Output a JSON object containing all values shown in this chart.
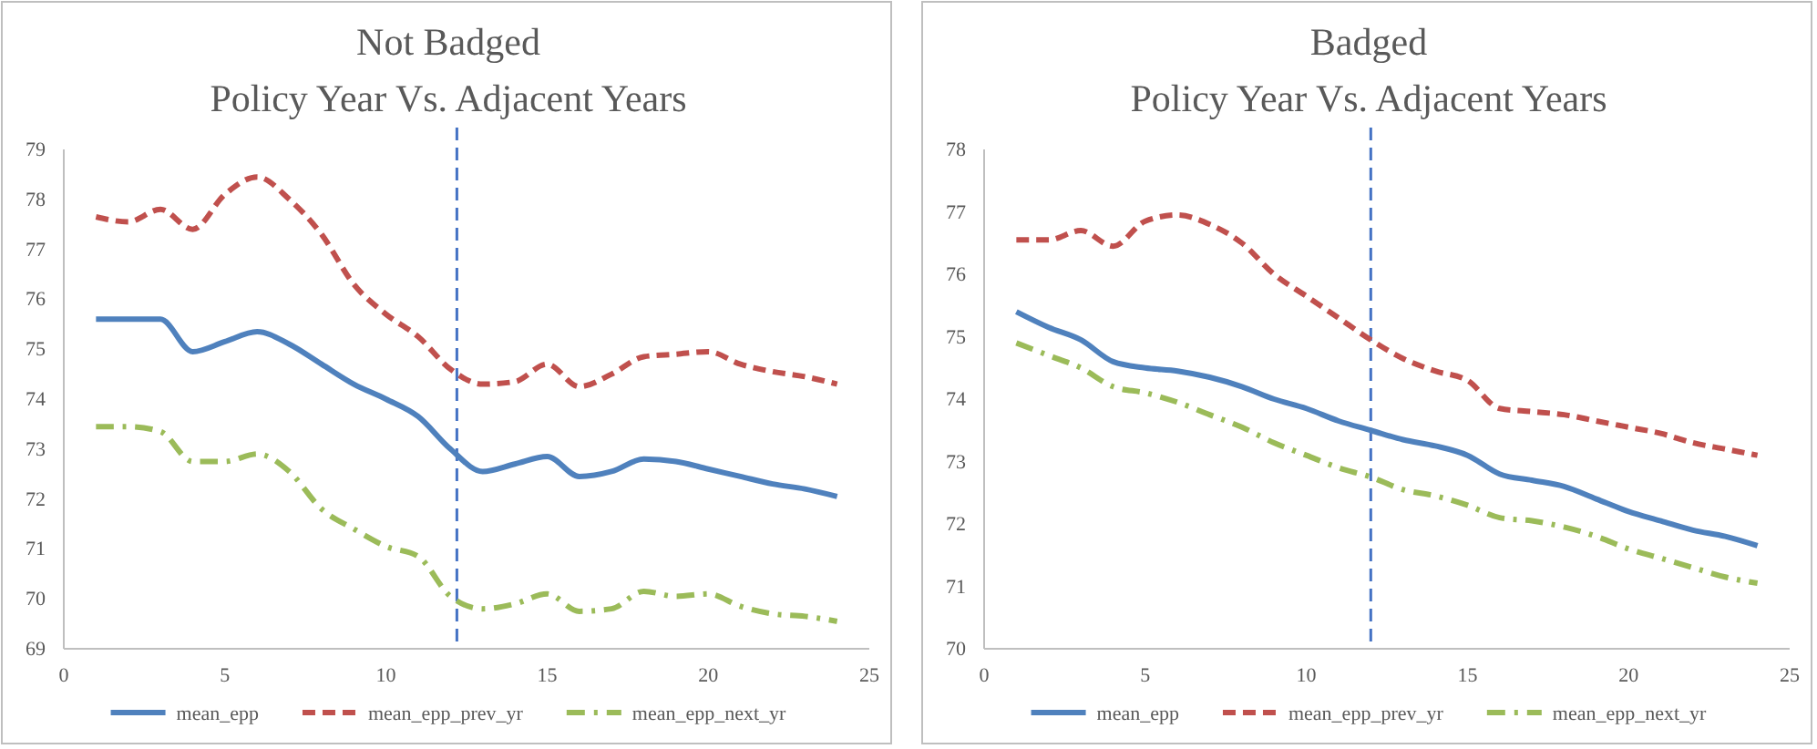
{
  "chart_data": [
    {
      "type": "line",
      "title": "Not Badged",
      "subtitle": "Policy Year Vs. Adjacent Years",
      "x": [
        1,
        2,
        3,
        4,
        5,
        6,
        7,
        8,
        9,
        10,
        11,
        12,
        13,
        14,
        15,
        16,
        17,
        18,
        19,
        20,
        21,
        22,
        23,
        24
      ],
      "xlim": [
        0,
        25
      ],
      "xticks": [
        0,
        5,
        10,
        15,
        20,
        25
      ],
      "ylim": [
        69,
        79
      ],
      "yticks": [
        69,
        70,
        71,
        72,
        73,
        74,
        75,
        76,
        77,
        78,
        79
      ],
      "grid": false,
      "legend": "bottom",
      "marker": "none",
      "ref_lines": [
        {
          "axis": "x",
          "value": 12.2,
          "color": "#4472c4",
          "line_style": "dashed"
        }
      ],
      "series": [
        {
          "name": "mean_epp",
          "color": "#4f81bd",
          "line_style": "solid",
          "values": [
            75.6,
            75.6,
            75.6,
            74.95,
            75.15,
            75.35,
            75.1,
            74.7,
            74.3,
            74.0,
            73.65,
            73.0,
            72.55,
            72.7,
            72.85,
            72.45,
            72.55,
            72.8,
            72.75,
            72.6,
            72.45,
            72.3,
            72.2,
            72.05
          ]
        },
        {
          "name": "mean_epp_prev_yr",
          "color": "#c0504d",
          "line_style": "dashed",
          "values": [
            77.65,
            77.55,
            77.8,
            77.4,
            78.1,
            78.45,
            78.0,
            77.3,
            76.3,
            75.7,
            75.25,
            74.6,
            74.3,
            74.35,
            74.7,
            74.25,
            74.5,
            74.85,
            74.9,
            74.95,
            74.7,
            74.55,
            74.45,
            74.3
          ]
        },
        {
          "name": "mean_epp_next_yr",
          "color": "#9bbb59",
          "line_style": "dashdot",
          "values": [
            73.45,
            73.45,
            73.35,
            72.75,
            72.75,
            72.9,
            72.55,
            71.8,
            71.4,
            71.05,
            70.85,
            70.05,
            69.8,
            69.9,
            70.1,
            69.75,
            69.8,
            70.15,
            70.05,
            70.1,
            69.85,
            69.7,
            69.65,
            69.55
          ]
        }
      ]
    },
    {
      "type": "line",
      "title": "Badged",
      "subtitle": "Policy Year Vs. Adjacent Years",
      "x": [
        1,
        2,
        3,
        4,
        5,
        6,
        7,
        8,
        9,
        10,
        11,
        12,
        13,
        14,
        15,
        16,
        17,
        18,
        19,
        20,
        21,
        22,
        23,
        24
      ],
      "xlim": [
        0,
        25
      ],
      "xticks": [
        0,
        5,
        10,
        15,
        20,
        25
      ],
      "ylim": [
        70,
        78
      ],
      "yticks": [
        70,
        71,
        72,
        73,
        74,
        75,
        76,
        77,
        78
      ],
      "grid": false,
      "legend": "bottom",
      "marker": "none",
      "ref_lines": [
        {
          "axis": "x",
          "value": 12,
          "color": "#4472c4",
          "line_style": "dashed"
        }
      ],
      "series": [
        {
          "name": "mean_epp",
          "color": "#4f81bd",
          "line_style": "solid",
          "values": [
            75.4,
            75.15,
            74.95,
            74.6,
            74.5,
            74.45,
            74.35,
            74.2,
            74.0,
            73.85,
            73.65,
            73.5,
            73.35,
            73.25,
            73.1,
            72.8,
            72.7,
            72.6,
            72.4,
            72.2,
            72.05,
            71.9,
            71.8,
            71.65
          ]
        },
        {
          "name": "mean_epp_prev_yr",
          "color": "#c0504d",
          "line_style": "dashed",
          "values": [
            76.55,
            76.55,
            76.7,
            76.45,
            76.85,
            76.95,
            76.8,
            76.5,
            76.0,
            75.65,
            75.3,
            74.95,
            74.65,
            74.45,
            74.3,
            73.85,
            73.8,
            73.75,
            73.65,
            73.55,
            73.45,
            73.3,
            73.2,
            73.1
          ]
        },
        {
          "name": "mean_epp_next_yr",
          "color": "#9bbb59",
          "line_style": "dashdot",
          "values": [
            74.9,
            74.7,
            74.5,
            74.2,
            74.1,
            73.95,
            73.75,
            73.55,
            73.3,
            73.1,
            72.9,
            72.75,
            72.55,
            72.45,
            72.3,
            72.1,
            72.05,
            71.95,
            71.8,
            71.6,
            71.45,
            71.3,
            71.15,
            71.05
          ]
        }
      ]
    }
  ]
}
